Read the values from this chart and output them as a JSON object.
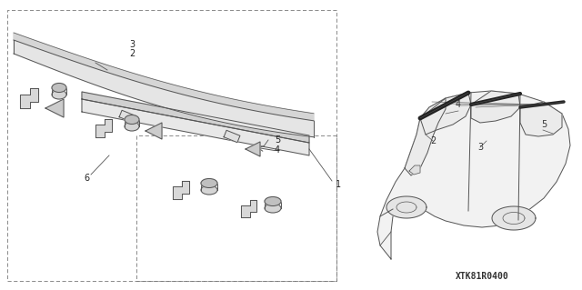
{
  "bg_color": "#ffffff",
  "fig_width": 6.4,
  "fig_height": 3.19,
  "dpi": 100,
  "part_number": "XTK81R0400",
  "line_color": "#555555",
  "dark_color": "#222222"
}
